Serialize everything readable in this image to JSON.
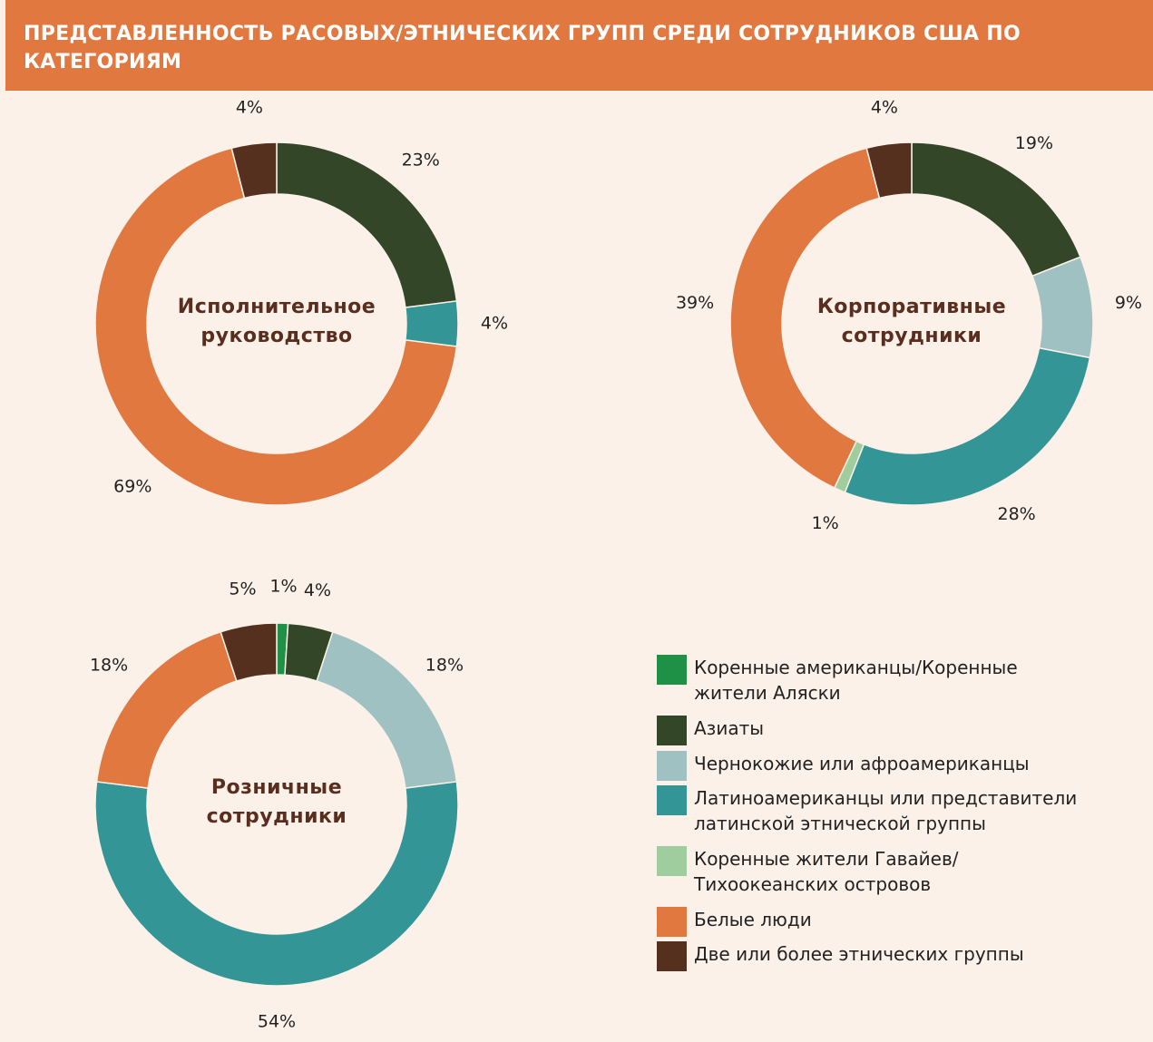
{
  "title": "ПРЕДСТАВЛЕННОСТЬ РАСОВЫХ/ЭТНИЧЕСКИХ ГРУПП СРЕДИ СОТРУДНИКОВ США ПО КАТЕГОРИЯМ",
  "legend": [
    {
      "name": "Коренные американцы/Коренные жители Аляски",
      "color": "#1e9146"
    },
    {
      "name": "Азиаты",
      "color": "#334628"
    },
    {
      "name": "Чернокожие или афроамериканцы",
      "color": "#9fc1c1"
    },
    {
      "name": "Латиноамериканцы или представители латинской этнической группы",
      "color": "#339596"
    },
    {
      "name": "Коренные жители Гавайев/ Тихоокеанских островов",
      "color": "#a0cd9e"
    },
    {
      "name": "Белые люди",
      "color": "#e07840"
    },
    {
      "name": "Две или более этнических группы",
      "color": "#56301f"
    }
  ],
  "chart_data": [
    {
      "type": "pie",
      "label": "Исполнительное руководство",
      "values": [
        null,
        23,
        null,
        4,
        null,
        69,
        4
      ],
      "value_labels": [
        null,
        "23%",
        null,
        "4%",
        null,
        "69%",
        "4%"
      ]
    },
    {
      "type": "pie",
      "label": "Корпоративные сотрудники",
      "values": [
        null,
        19,
        9,
        28,
        1,
        39,
        4
      ],
      "value_labels": [
        null,
        "19%",
        "9%",
        "28%",
        "1%",
        "39%",
        "4%"
      ]
    },
    {
      "type": "pie",
      "label": "Розничные сотрудники",
      "values": [
        1,
        4,
        18,
        54,
        null,
        18,
        5
      ],
      "value_labels": [
        "1%",
        "4%",
        "18%",
        "54%",
        null,
        "18%",
        "5%"
      ]
    }
  ]
}
